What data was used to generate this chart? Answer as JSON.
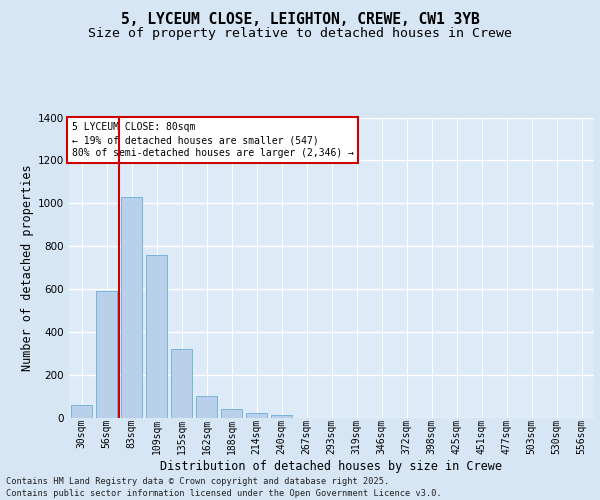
{
  "title1": "5, LYCEUM CLOSE, LEIGHTON, CREWE, CW1 3YB",
  "title2": "Size of property relative to detached houses in Crewe",
  "xlabel": "Distribution of detached houses by size in Crewe",
  "ylabel": "Number of detached properties",
  "categories": [
    "30sqm",
    "56sqm",
    "83sqm",
    "109sqm",
    "135sqm",
    "162sqm",
    "188sqm",
    "214sqm",
    "240sqm",
    "267sqm",
    "293sqm",
    "319sqm",
    "346sqm",
    "372sqm",
    "398sqm",
    "425sqm",
    "451sqm",
    "477sqm",
    "503sqm",
    "530sqm",
    "556sqm"
  ],
  "values": [
    60,
    590,
    1030,
    760,
    320,
    100,
    40,
    20,
    10,
    0,
    0,
    0,
    0,
    0,
    0,
    0,
    0,
    0,
    0,
    0,
    0
  ],
  "bar_color": "#b8d0ea",
  "bar_edge_color": "#6aaed6",
  "bg_color": "#d6e6f5",
  "plot_bg_color": "#ddeaf7",
  "grid_color": "#ffffff",
  "vline_x_index": 2,
  "vline_color": "#cc0000",
  "annotation_text": "5 LYCEUM CLOSE: 80sqm\n← 19% of detached houses are smaller (547)\n80% of semi-detached houses are larger (2,346) →",
  "annotation_box_color": "#ffffff",
  "annotation_box_edge": "#cc0000",
  "ylim": [
    0,
    1400
  ],
  "yticks": [
    0,
    200,
    400,
    600,
    800,
    1000,
    1200,
    1400
  ],
  "footnote1": "Contains HM Land Registry data © Crown copyright and database right 2025.",
  "footnote2": "Contains public sector information licensed under the Open Government Licence v3.0.",
  "title_fontsize": 10.5,
  "subtitle_fontsize": 9.5,
  "tick_fontsize": 7,
  "ylabel_fontsize": 8.5,
  "xlabel_fontsize": 8.5,
  "annotation_fontsize": 7,
  "footnote_fontsize": 6.2
}
